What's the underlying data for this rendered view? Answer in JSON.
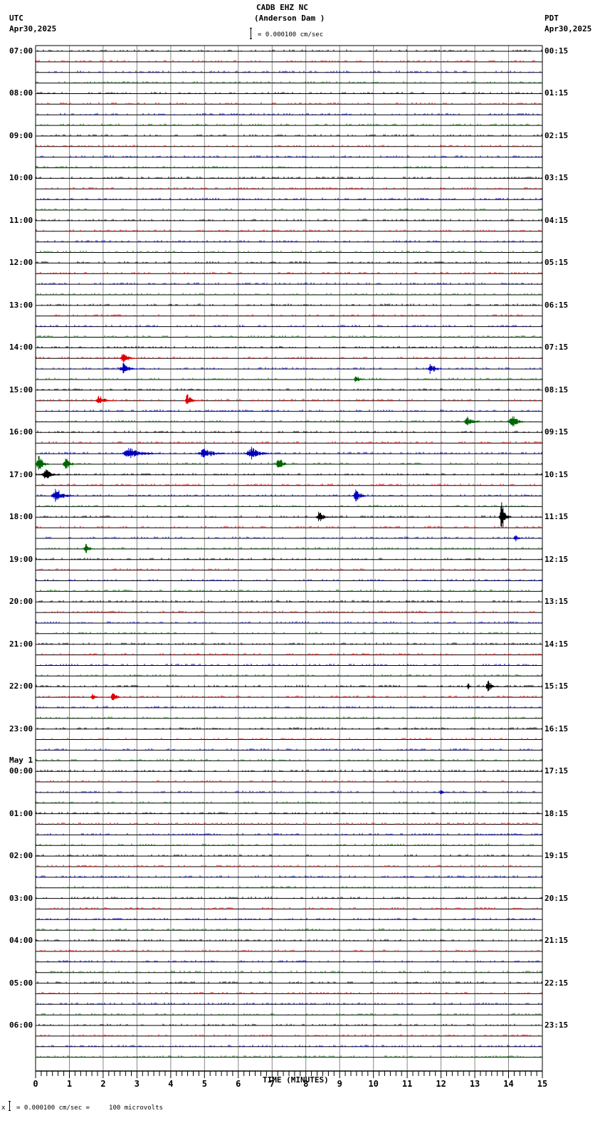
{
  "header": {
    "station": "CADB EHZ NC",
    "location": "(Anderson Dam )",
    "left_tz": "UTC",
    "left_date": "Apr30,2025",
    "right_tz": "PDT",
    "right_date": "Apr30,2025",
    "scale_text": "= 0.000100 cm/sec"
  },
  "footer": {
    "scale_prefix": "x",
    "scale_text": "= 0.000100 cm/sec =     100 microvolts"
  },
  "colors": {
    "trace_cycle": [
      "#000000",
      "#dd0000",
      "#0000bb",
      "#006400"
    ],
    "grid": "#888888",
    "baseline": "#000000"
  },
  "chart_data": {
    "type": "line",
    "title": "CADB EHZ NC (Anderson Dam )",
    "subtitle": "Helicorder seismogram, 24 hours, 15 minutes per line",
    "xlabel": "TIME (MINUTES)",
    "x_ticks": [
      "0",
      "1",
      "2",
      "3",
      "4",
      "5",
      "6",
      "7",
      "8",
      "9",
      "10",
      "11",
      "12",
      "13",
      "14",
      "15"
    ],
    "xlim": [
      0,
      15
    ],
    "grid": true,
    "left_labels": [
      {
        "row": 0,
        "text": "07:00"
      },
      {
        "row": 4,
        "text": "08:00"
      },
      {
        "row": 8,
        "text": "09:00"
      },
      {
        "row": 12,
        "text": "10:00"
      },
      {
        "row": 16,
        "text": "11:00"
      },
      {
        "row": 20,
        "text": "12:00"
      },
      {
        "row": 24,
        "text": "13:00"
      },
      {
        "row": 28,
        "text": "14:00"
      },
      {
        "row": 32,
        "text": "15:00"
      },
      {
        "row": 36,
        "text": "16:00"
      },
      {
        "row": 40,
        "text": "17:00"
      },
      {
        "row": 44,
        "text": "18:00"
      },
      {
        "row": 48,
        "text": "19:00"
      },
      {
        "row": 52,
        "text": "20:00"
      },
      {
        "row": 56,
        "text": "21:00"
      },
      {
        "row": 60,
        "text": "22:00"
      },
      {
        "row": 64,
        "text": "23:00"
      },
      {
        "row": 68,
        "text": "00:00",
        "date": "May 1"
      },
      {
        "row": 72,
        "text": "01:00"
      },
      {
        "row": 76,
        "text": "02:00"
      },
      {
        "row": 80,
        "text": "03:00"
      },
      {
        "row": 84,
        "text": "04:00"
      },
      {
        "row": 88,
        "text": "05:00"
      },
      {
        "row": 92,
        "text": "06:00"
      }
    ],
    "right_labels": [
      "00:15",
      "01:15",
      "02:15",
      "03:15",
      "04:15",
      "05:15",
      "06:15",
      "07:15",
      "08:15",
      "09:15",
      "10:15",
      "11:15",
      "12:15",
      "13:15",
      "14:15",
      "15:15",
      "16:15",
      "17:15",
      "18:15",
      "19:15",
      "20:15",
      "21:15",
      "22:15",
      "23:15"
    ],
    "rows": 96,
    "events": [
      {
        "row": 29,
        "minute": 2.6,
        "amp": 10,
        "dur": 0.5
      },
      {
        "row": 30,
        "minute": 2.6,
        "amp": 9,
        "dur": 0.6
      },
      {
        "row": 30,
        "minute": 11.7,
        "amp": 8,
        "dur": 0.5
      },
      {
        "row": 31,
        "minute": 9.5,
        "amp": 6,
        "dur": 0.4
      },
      {
        "row": 33,
        "minute": 1.9,
        "amp": 8,
        "dur": 0.6
      },
      {
        "row": 33,
        "minute": 4.5,
        "amp": 10,
        "dur": 0.4
      },
      {
        "row": 35,
        "minute": 12.8,
        "amp": 8,
        "dur": 0.6
      },
      {
        "row": 35,
        "minute": 14.1,
        "amp": 12,
        "dur": 0.5
      },
      {
        "row": 38,
        "minute": 2.8,
        "amp": 9,
        "dur": 1.2
      },
      {
        "row": 38,
        "minute": 5.0,
        "amp": 8,
        "dur": 1.0
      },
      {
        "row": 38,
        "minute": 6.4,
        "amp": 10,
        "dur": 0.8
      },
      {
        "row": 39,
        "minute": 0.1,
        "amp": 14,
        "dur": 0.4
      },
      {
        "row": 39,
        "minute": 0.9,
        "amp": 12,
        "dur": 0.4
      },
      {
        "row": 39,
        "minute": 7.2,
        "amp": 12,
        "dur": 0.4
      },
      {
        "row": 40,
        "minute": 0.3,
        "amp": 9,
        "dur": 0.6
      },
      {
        "row": 42,
        "minute": 0.6,
        "amp": 14,
        "dur": 0.6
      },
      {
        "row": 42,
        "minute": 9.5,
        "amp": 10,
        "dur": 0.5
      },
      {
        "row": 44,
        "minute": 8.4,
        "amp": 9,
        "dur": 0.5
      },
      {
        "row": 44,
        "minute": 13.8,
        "amp": 26,
        "dur": 0.3
      },
      {
        "row": 46,
        "minute": 14.2,
        "amp": 6,
        "dur": 0.3
      },
      {
        "row": 47,
        "minute": 1.5,
        "amp": 8,
        "dur": 0.4
      },
      {
        "row": 60,
        "minute": 12.8,
        "amp": 6,
        "dur": 0.2
      },
      {
        "row": 60,
        "minute": 13.4,
        "amp": 9,
        "dur": 0.4
      },
      {
        "row": 61,
        "minute": 1.7,
        "amp": 6,
        "dur": 0.4
      },
      {
        "row": 61,
        "minute": 2.3,
        "amp": 7,
        "dur": 0.4
      },
      {
        "row": 70,
        "minute": 12.0,
        "amp": 6,
        "dur": 0.2
      }
    ]
  }
}
